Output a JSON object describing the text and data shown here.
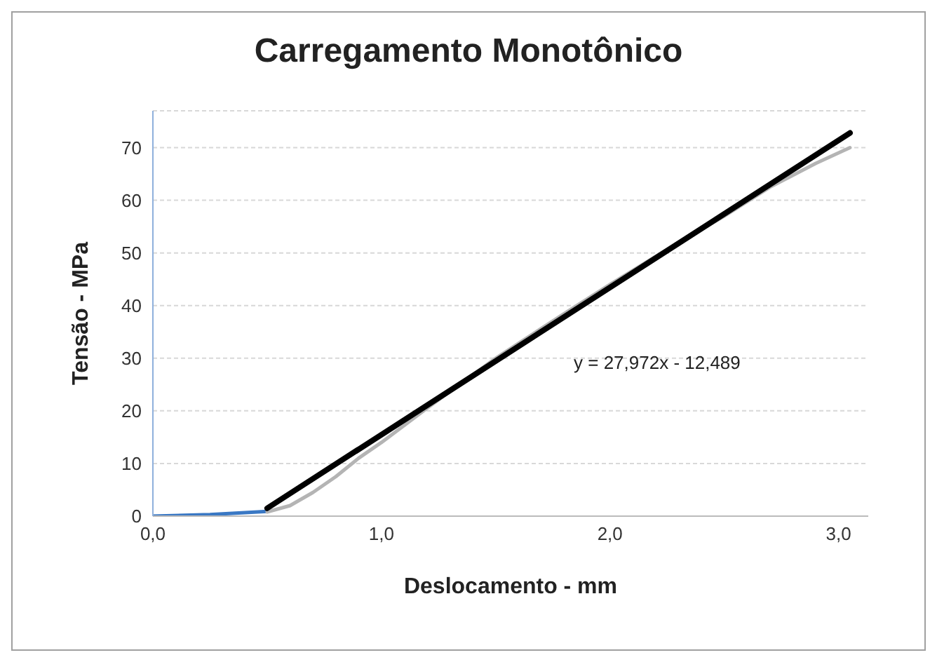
{
  "chart_data": {
    "type": "line",
    "title": "Carregamento Monotônico",
    "xlabel": "Deslocamento - mm",
    "ylabel": "Tensão - MPa",
    "xlim": [
      0,
      3.13
    ],
    "xticks": [
      {
        "value": 0,
        "label": "0,0"
      },
      {
        "value": 1,
        "label": "1,0"
      },
      {
        "value": 2,
        "label": "2,0"
      },
      {
        "value": 3,
        "label": "3,0"
      }
    ],
    "ylim": [
      0,
      77
    ],
    "yticks": [
      0,
      10,
      20,
      30,
      40,
      50,
      60,
      70
    ],
    "grid": "y",
    "marker": "none",
    "line_style": "solid",
    "annotations": [
      "y = 27,972x - 12,489"
    ],
    "series": [
      {
        "color": "#3a78c4",
        "x": [
          0,
          0.25,
          0.5
        ],
        "values": [
          0,
          0.3,
          0.9
        ]
      },
      {
        "color": "#b4b4b4",
        "x": [
          0.5,
          0.6,
          0.7,
          0.8,
          0.9,
          1.0,
          1.2,
          1.5,
          1.8,
          2.0,
          2.3,
          2.5,
          2.7,
          2.9,
          3.05
        ],
        "values": [
          0.8,
          2,
          4.5,
          7.5,
          11,
          14,
          20.5,
          30,
          38.5,
          44,
          52,
          57,
          62.5,
          67,
          70
        ]
      },
      {
        "type": "line",
        "color": "#000000",
        "x": [
          0.5,
          3.05
        ],
        "values": [
          1.5,
          72.8
        ]
      }
    ]
  }
}
